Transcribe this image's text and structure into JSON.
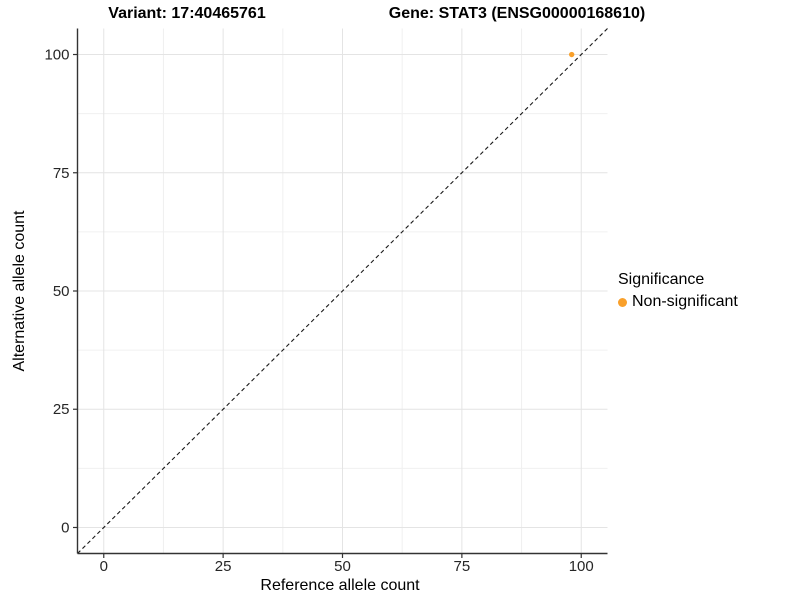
{
  "chart_data": {
    "type": "scatter",
    "title_left": "Variant: 17:40465761",
    "title_right": "Gene: STAT3 (ENSG00000168610)",
    "xlabel": "Reference allele count",
    "ylabel": "Alternative allele count",
    "xlim": [
      -5.5,
      105.5
    ],
    "ylim": [
      -5.5,
      105.5
    ],
    "x_ticks": [
      0,
      25,
      50,
      75,
      100
    ],
    "y_ticks": [
      0,
      25,
      50,
      75,
      100
    ],
    "x_minor_ticks": [
      12.5,
      37.5,
      62.5,
      87.5
    ],
    "y_minor_ticks": [
      12.5,
      37.5,
      62.5,
      87.5
    ],
    "grid": true,
    "reference_line": {
      "type": "identity",
      "style": "dashed",
      "color": "#1a1a1a"
    },
    "series": [
      {
        "name": "Non-significant",
        "color": "#F9A02B",
        "points": [
          {
            "x": 98,
            "y": 100
          }
        ]
      }
    ],
    "legend": {
      "title": "Significance",
      "position": "right",
      "items": [
        {
          "label": "Non-significant",
          "color": "#F9A02B"
        }
      ]
    },
    "colors": {
      "grid_major": "#E4E4E4",
      "grid_minor": "#F0F0F0",
      "axis": "#333333",
      "tick_text": "#262626",
      "background": "#FFFFFF"
    }
  }
}
